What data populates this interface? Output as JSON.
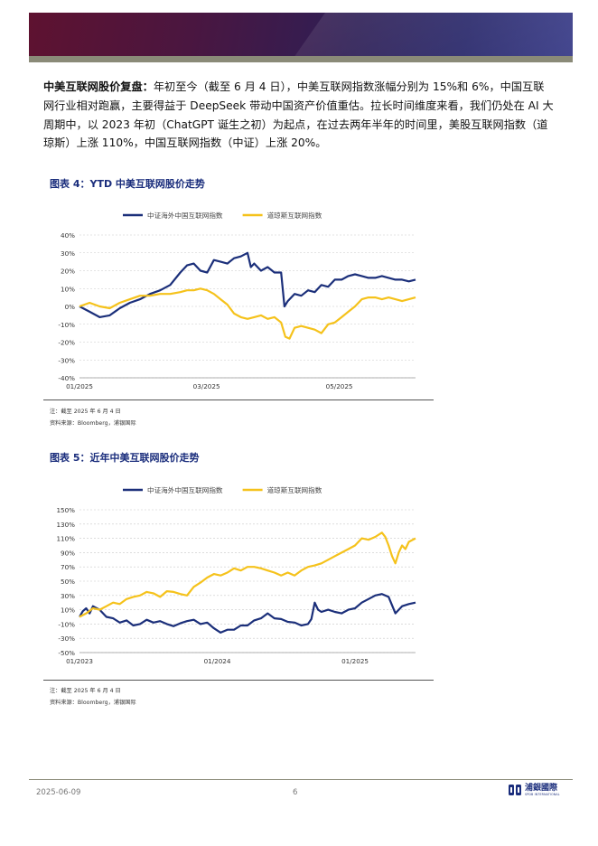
{
  "paragraph": {
    "lead": "中美互联网股价复盘：",
    "body": "年初至今（截至 6 月 4 日），中美互联网指数涨幅分别为 15%和 6%，中国互联网行业相对跑赢，主要得益于 DeepSeek 带动中国资产价值重估。拉长时间维度来看，我们仍处在 AI 大周期中，以 2023 年初（ChatGPT 诞生之初）为起点，在过去两年半年的时间里，美股互联网指数（道琼斯）上涨 110%，中国互联网指数（中证）上涨 20%。"
  },
  "figure4": {
    "title": "图表 4：YTD 中美互联网股价走势",
    "note1": "注：截至 2025 年 6 月 4 日",
    "note2": "资料来源：Bloomberg，浦银国际"
  },
  "figure5": {
    "title": "图表 5：近年中美互联网股价走势",
    "note1": "注：截至 2025 年 6 月 4 日",
    "note2": "资料来源：Bloomberg，浦银国际"
  },
  "colors": {
    "china": "#1b2f7a",
    "us": "#f5c21b",
    "grid": "#c8c8c8"
  },
  "chart_data": [
    {
      "type": "line",
      "title": "图表 4：YTD 中美互联网股价走势",
      "ylim": [
        -40,
        40
      ],
      "yticks": [
        "40%",
        "30%",
        "20%",
        "10%",
        "0%",
        "-10%",
        "-20%",
        "-30%",
        "-40%"
      ],
      "xticks": [
        "01/2025",
        "03/2025",
        "05/2025"
      ],
      "xtick_positions": [
        0,
        0.378,
        0.773
      ],
      "grid": true,
      "legend_position": "top-center",
      "series": [
        {
          "name": "中证海外中国互联网指数",
          "color": "#1b2f7a",
          "x": [
            0,
            0.03,
            0.06,
            0.09,
            0.12,
            0.15,
            0.18,
            0.21,
            0.24,
            0.27,
            0.3,
            0.32,
            0.34,
            0.36,
            0.38,
            0.4,
            0.42,
            0.44,
            0.46,
            0.48,
            0.5,
            0.51,
            0.52,
            0.54,
            0.56,
            0.58,
            0.6,
            0.61,
            0.62,
            0.63,
            0.64,
            0.66,
            0.68,
            0.7,
            0.72,
            0.74,
            0.76,
            0.78,
            0.8,
            0.82,
            0.84,
            0.86,
            0.88,
            0.9,
            0.92,
            0.94,
            0.96,
            0.98,
            1.0
          ],
          "y": [
            0,
            -3,
            -6,
            -5,
            -1,
            2,
            4,
            7,
            9,
            12,
            19,
            23,
            24,
            20,
            19,
            26,
            25,
            24,
            27,
            28,
            30,
            22,
            24,
            20,
            22,
            19,
            19,
            0,
            3,
            5,
            7,
            6,
            9,
            8,
            12,
            11,
            15,
            15,
            17,
            18,
            17,
            16,
            16,
            17,
            16,
            15,
            15,
            14,
            15
          ]
        },
        {
          "name": "道琼斯互联网指数",
          "color": "#f5c21b",
          "x": [
            0,
            0.03,
            0.06,
            0.09,
            0.12,
            0.15,
            0.18,
            0.21,
            0.24,
            0.27,
            0.3,
            0.32,
            0.34,
            0.36,
            0.38,
            0.4,
            0.42,
            0.44,
            0.46,
            0.48,
            0.5,
            0.52,
            0.54,
            0.56,
            0.58,
            0.6,
            0.6125,
            0.625,
            0.64,
            0.66,
            0.68,
            0.7,
            0.72,
            0.74,
            0.76,
            0.78,
            0.8,
            0.82,
            0.84,
            0.86,
            0.88,
            0.9,
            0.92,
            0.94,
            0.96,
            0.98,
            1.0
          ],
          "y": [
            0,
            2,
            0,
            -1,
            2,
            4,
            6,
            6,
            7,
            7,
            8,
            9,
            9,
            10,
            9,
            7,
            4,
            1,
            -4,
            -6,
            -7,
            -6,
            -5,
            -7,
            -6,
            -9,
            -17,
            -18,
            -12,
            -11,
            -12,
            -13,
            -15,
            -10,
            -9,
            -6,
            -3,
            0,
            4,
            5,
            5,
            4,
            5,
            4,
            3,
            4,
            5
          ]
        }
      ]
    },
    {
      "type": "line",
      "title": "图表 5：近年中美互联网股价走势",
      "ylim": [
        -50,
        150
      ],
      "yticks": [
        "150%",
        "130%",
        "110%",
        "90%",
        "70%",
        "50%",
        "30%",
        "10%",
        "-10%",
        "-30%",
        "-50%"
      ],
      "xticks": [
        "01/2023",
        "01/2024",
        "01/2025"
      ],
      "xtick_positions": [
        0,
        0.41,
        0.82
      ],
      "grid": true,
      "legend_position": "top-center",
      "series": [
        {
          "name": "中证海外中国互联网指数",
          "color": "#1b2f7a",
          "x": [
            0,
            0.01,
            0.02,
            0.03,
            0.04,
            0.06,
            0.08,
            0.1,
            0.12,
            0.14,
            0.16,
            0.18,
            0.2,
            0.22,
            0.24,
            0.26,
            0.28,
            0.3,
            0.32,
            0.34,
            0.36,
            0.38,
            0.4,
            0.42,
            0.44,
            0.46,
            0.48,
            0.5,
            0.52,
            0.54,
            0.56,
            0.58,
            0.6,
            0.62,
            0.64,
            0.66,
            0.68,
            0.69,
            0.7,
            0.71,
            0.72,
            0.74,
            0.76,
            0.78,
            0.8,
            0.82,
            0.84,
            0.86,
            0.88,
            0.9,
            0.92,
            0.94,
            0.96,
            0.98,
            1.0
          ],
          "y": [
            0,
            8,
            12,
            5,
            15,
            10,
            0,
            -2,
            -8,
            -5,
            -12,
            -10,
            -4,
            -8,
            -6,
            -10,
            -13,
            -9,
            -6,
            -4,
            -10,
            -8,
            -16,
            -22,
            -18,
            -18,
            -12,
            -12,
            -5,
            -2,
            5,
            -2,
            -3,
            -7,
            -8,
            -12,
            -10,
            -3,
            20,
            10,
            7,
            10,
            7,
            5,
            10,
            12,
            20,
            25,
            30,
            32,
            28,
            5,
            15,
            18,
            20
          ]
        },
        {
          "name": "道琼斯互联网指数",
          "color": "#f5c21b",
          "x": [
            0,
            0.02,
            0.04,
            0.06,
            0.08,
            0.1,
            0.12,
            0.14,
            0.16,
            0.18,
            0.2,
            0.22,
            0.24,
            0.26,
            0.28,
            0.3,
            0.32,
            0.34,
            0.36,
            0.38,
            0.4,
            0.42,
            0.44,
            0.46,
            0.48,
            0.5,
            0.52,
            0.54,
            0.56,
            0.58,
            0.6,
            0.62,
            0.64,
            0.66,
            0.68,
            0.7,
            0.72,
            0.74,
            0.76,
            0.78,
            0.8,
            0.82,
            0.84,
            0.86,
            0.88,
            0.9,
            0.91,
            0.92,
            0.93,
            0.94,
            0.95,
            0.96,
            0.97,
            0.98,
            1.0
          ],
          "y": [
            0,
            5,
            12,
            10,
            15,
            20,
            18,
            25,
            28,
            30,
            35,
            33,
            28,
            36,
            35,
            32,
            30,
            42,
            48,
            55,
            60,
            58,
            62,
            68,
            65,
            70,
            70,
            68,
            65,
            62,
            58,
            62,
            58,
            65,
            70,
            72,
            75,
            80,
            85,
            90,
            95,
            100,
            110,
            108,
            112,
            118,
            112,
            100,
            85,
            75,
            90,
            100,
            95,
            105,
            110
          ]
        }
      ]
    }
  ],
  "footer": {
    "date": "2025-06-09",
    "page": "6",
    "logo_cn": "浦銀國際",
    "logo_en": "SPDB INTERNATIONAL"
  }
}
